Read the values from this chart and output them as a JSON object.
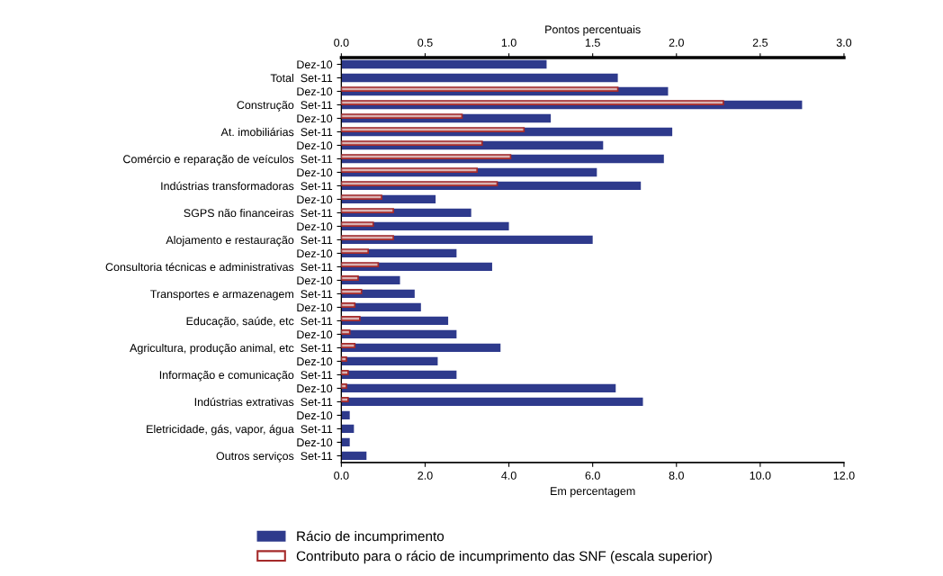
{
  "chart_data": {
    "type": "bar",
    "orientation": "horizontal",
    "categories": [
      "Dez-10",
      "Total  Set-11",
      "Dez-10",
      "Construção  Set-11",
      "Dez-10",
      "At. imobiliárias  Set-11",
      "Dez-10",
      "Comércio e reparação de veículos  Set-11",
      "Dez-10",
      "Indústrias transformadoras  Set-11",
      "Dez-10",
      "SGPS não financeiras  Set-11",
      "Dez-10",
      "Alojamento e restauração  Set-11",
      "Dez-10",
      "Consultoria técnicas e administrativas  Set-11",
      "Dez-10",
      "Transportes e armazenagem  Set-11",
      "Dez-10",
      "Educação, saúde, etc  Set-11",
      "Dez-10",
      "Agricultura, produção animal, etc  Set-11",
      "Dez-10",
      "Informação e comunicação  Set-11",
      "Dez-10",
      "Indústrias extrativas  Set-11",
      "Dez-10",
      "Eletricidade, gás, vapor, água  Set-11",
      "Dez-10",
      "Outros serviços  Set-11"
    ],
    "series": [
      {
        "name": "Rácio de incumprimento",
        "color": "#2e3a8c",
        "values": [
          4.9,
          6.6,
          7.8,
          11.0,
          5.0,
          7.9,
          6.25,
          7.7,
          6.1,
          7.15,
          2.25,
          3.1,
          4.0,
          6.0,
          2.75,
          3.6,
          1.4,
          1.75,
          1.9,
          2.55,
          2.75,
          3.8,
          2.3,
          2.75,
          6.55,
          7.2,
          0.2,
          0.3,
          0.2,
          0.6
        ]
      },
      {
        "name": "Contributo para o rácio de incumprimento das SNF (escala superior)",
        "color": "#a52a2a",
        "axis": "x2",
        "values": [
          null,
          null,
          1.65,
          2.28,
          0.72,
          1.09,
          0.84,
          1.01,
          0.81,
          0.93,
          0.24,
          0.31,
          0.19,
          0.31,
          0.16,
          0.22,
          0.1,
          0.12,
          0.08,
          0.11,
          0.05,
          0.08,
          0.03,
          0.04,
          0.03,
          0.04,
          null,
          null,
          null,
          null
        ]
      }
    ],
    "xlabel": "Em percentagem",
    "x2label": "Pontos percentuais",
    "xlim": [
      0,
      12
    ],
    "xticks": [
      {
        "value": 0,
        "label": "0.0"
      },
      {
        "value": 2,
        "label": "2.0"
      },
      {
        "value": 4,
        "label": "4.0"
      },
      {
        "value": 6,
        "label": "6.0"
      },
      {
        "value": 8,
        "label": "8.0"
      },
      {
        "value": 10,
        "label": "10.0"
      },
      {
        "value": 12,
        "label": "12.0"
      }
    ],
    "x2lim": [
      0,
      3
    ],
    "x2ticks": [
      {
        "value": 0,
        "label": "0.0"
      },
      0.5,
      {
        "value": 1,
        "label": "1.0"
      },
      1.5,
      {
        "value": 2,
        "label": "2.0"
      },
      2.5,
      {
        "value": 3,
        "label": "3.0"
      }
    ],
    "grid": false,
    "legend": "bottom"
  }
}
